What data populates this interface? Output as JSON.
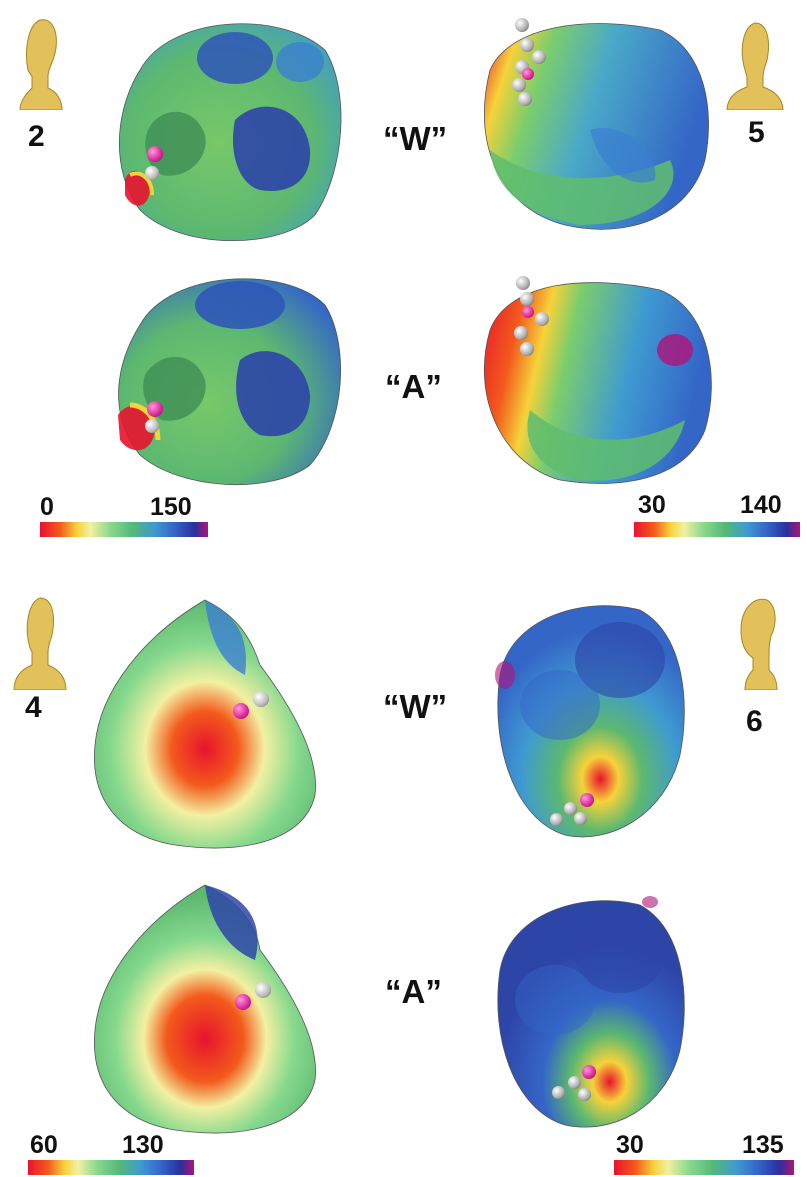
{
  "figure": {
    "rows": [
      {
        "index": 0,
        "left_case": "2",
        "right_case": "5",
        "label": "“W”"
      },
      {
        "index": 1,
        "label": "“A”"
      },
      {
        "index": 2,
        "left_case": "4",
        "right_case": "6",
        "label": "“W”"
      },
      {
        "index": 3,
        "label": "“A”"
      }
    ],
    "color_scales": [
      {
        "group": "case-2",
        "min": "0",
        "max": "150"
      },
      {
        "group": "case-5",
        "min": "30",
        "max": "140"
      },
      {
        "group": "case-4",
        "min": "60",
        "max": "130"
      },
      {
        "group": "case-6",
        "min": "30",
        "max": "135"
      }
    ],
    "colormap": [
      "#e8132d",
      "#f35a1c",
      "#f6d23a",
      "#f3f0a2",
      "#86d98e",
      "#56b877",
      "#3f9ad1",
      "#3466c7",
      "#2b2f9c",
      "#b0137a"
    ],
    "marker_colors": {
      "stimulus": "#d9249b",
      "electrode": "#b9b9b9"
    }
  }
}
